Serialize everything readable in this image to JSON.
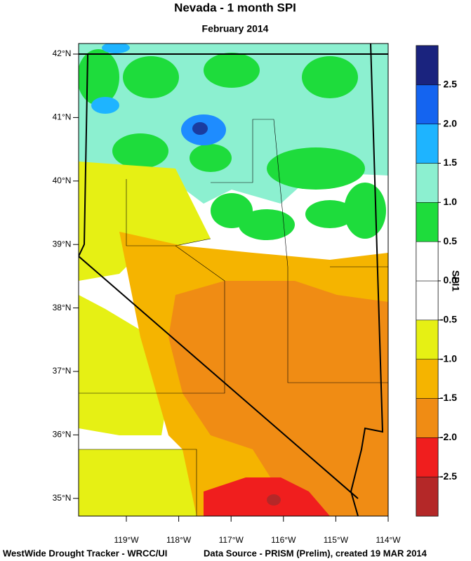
{
  "map": {
    "title": "Nevada - 1 month SPI",
    "subtitle": "February 2014",
    "lat_labels": [
      "42°N",
      "41°N",
      "40°N",
      "39°N",
      "38°N",
      "37°N",
      "36°N",
      "35°N"
    ],
    "lon_labels": [
      "119°W",
      "118°W",
      "117°W",
      "116°W",
      "115°W",
      "114°W"
    ],
    "footer_left": "WestWide Drought Tracker - WRCC/UI",
    "footer_right": "Data Source - PRISM (Prelim), created 19 MAR 2014",
    "colorbar": {
      "title": "SPI1",
      "limits": [
        -3,
        3
      ],
      "colors": [
        "#b42828",
        "#f01e1e",
        "#f08c14",
        "#f5b400",
        "#e6f014",
        "#ffffff",
        "#ffffff",
        "#1edc3c",
        "#8cf0d0",
        "#1eb4ff",
        "#1464f0",
        "#1a237e"
      ],
      "ticks": [
        -2.5,
        {
          "value": -2,
          "label": "-2.0"
        },
        -1.5,
        {
          "value": -1,
          "label": "-1.0"
        },
        -0.5,
        {
          "value": 0,
          "label": "0.0"
        },
        0.5,
        {
          "value": 1,
          "label": "1.0"
        },
        1.5,
        {
          "value": 2,
          "label": "2.0"
        },
        2.5
      ]
    }
  }
}
